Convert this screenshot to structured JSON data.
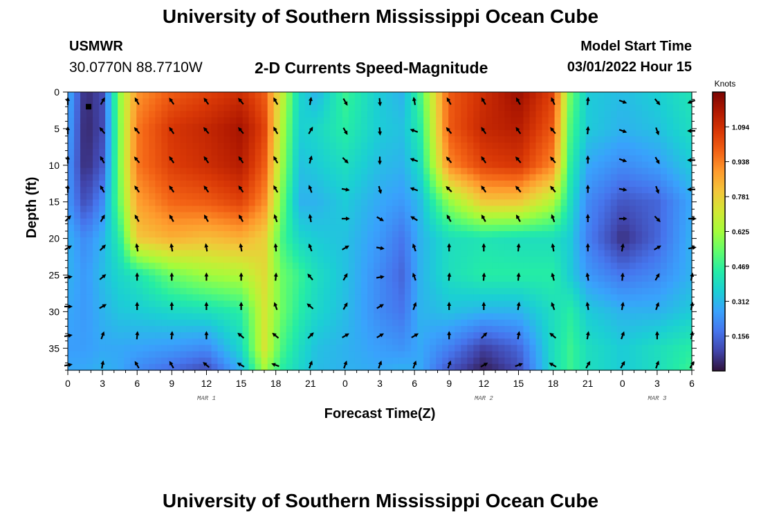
{
  "header": {
    "title": "University of Southern Mississippi Ocean Cube",
    "station_id": "USMWR",
    "coordinates": "30.0770N  88.7710W",
    "subtitle": "2-D Currents Speed-Magnitude",
    "model_start_label": "Model Start Time",
    "model_start_value": "03/01/2022 Hour 15"
  },
  "footer": {
    "title": "University of Southern Mississippi Ocean Cube"
  },
  "chart_data": {
    "type": "heatmap",
    "title": "2-D Currents Speed-Magnitude",
    "xlabel": "Forecast Time(Z)",
    "ylabel": "Depth (ft)",
    "x_start_hour": 0,
    "x_end_hour": 54,
    "x_ticks": [
      {
        "hour": 0,
        "label": "0"
      },
      {
        "hour": 3,
        "label": "3"
      },
      {
        "hour": 6,
        "label": "6"
      },
      {
        "hour": 9,
        "label": "9"
      },
      {
        "hour": 12,
        "label": "12"
      },
      {
        "hour": 15,
        "label": "15"
      },
      {
        "hour": 18,
        "label": "18"
      },
      {
        "hour": 21,
        "label": "21"
      },
      {
        "hour": 24,
        "label": "0"
      },
      {
        "hour": 27,
        "label": "3"
      },
      {
        "hour": 30,
        "label": "6"
      },
      {
        "hour": 33,
        "label": "9"
      },
      {
        "hour": 36,
        "label": "12"
      },
      {
        "hour": 39,
        "label": "15"
      },
      {
        "hour": 42,
        "label": "18"
      },
      {
        "hour": 45,
        "label": "21"
      },
      {
        "hour": 48,
        "label": "0"
      },
      {
        "hour": 51,
        "label": "3"
      },
      {
        "hour": 54,
        "label": "6"
      }
    ],
    "day_labels": [
      {
        "hour": 12,
        "label": "MAR 1"
      },
      {
        "hour": 36,
        "label": "MAR 2"
      },
      {
        "hour": 51,
        "label": "MAR 3"
      }
    ],
    "y_range": [
      0,
      38
    ],
    "y_ticks": [
      0,
      5,
      10,
      15,
      20,
      25,
      30,
      35
    ],
    "colorbar": {
      "unit": "Knots",
      "min": 0,
      "max": 1.25,
      "tick_values": [
        0.156,
        0.312,
        0.469,
        0.625,
        0.781,
        0.938,
        1.094
      ],
      "tick_labels": [
        "0.156",
        "0.312",
        "0.469",
        "0.625",
        "0.781",
        "0.938",
        "1.094"
      ],
      "colors": [
        "#30123b",
        "#4145ab",
        "#4675ed",
        "#39a2fc",
        "#1bcfd4",
        "#24eca6",
        "#61fc6c",
        "#a4fc3b",
        "#d1e834",
        "#f3c63a",
        "#fe9b2d",
        "#f36315",
        "#d93806",
        "#b11901",
        "#7a0402"
      ]
    },
    "speed_grid_hours": [
      0,
      1.5,
      3,
      4.5,
      6,
      9,
      12,
      15,
      17,
      18.5,
      20,
      21.5,
      24,
      27,
      29,
      30.5,
      33,
      36,
      39,
      42,
      43.5,
      45,
      48,
      51,
      54
    ],
    "speed_grid_depths": [
      0,
      5,
      10,
      15,
      20,
      25,
      30,
      35,
      38
    ],
    "speed_grid": [
      [
        0.3,
        0.04,
        0.1,
        0.6,
        0.9,
        1.0,
        1.05,
        1.1,
        1.0,
        0.7,
        0.38,
        0.3,
        0.48,
        0.35,
        0.3,
        0.5,
        1.0,
        1.1,
        1.2,
        1.05,
        0.55,
        0.35,
        0.32,
        0.36,
        0.42
      ],
      [
        0.28,
        0.03,
        0.1,
        0.58,
        0.95,
        1.08,
        1.12,
        1.18,
        1.05,
        0.65,
        0.36,
        0.38,
        0.45,
        0.35,
        0.33,
        0.45,
        1.0,
        1.12,
        1.15,
        1.0,
        0.5,
        0.35,
        0.3,
        0.33,
        0.4
      ],
      [
        0.25,
        0.04,
        0.13,
        0.58,
        0.95,
        1.06,
        1.1,
        1.15,
        1.0,
        0.62,
        0.33,
        0.35,
        0.4,
        0.32,
        0.3,
        0.4,
        0.92,
        1.05,
        1.08,
        0.92,
        0.45,
        0.28,
        0.22,
        0.26,
        0.35
      ],
      [
        0.25,
        0.1,
        0.22,
        0.55,
        0.88,
        0.98,
        1.0,
        1.05,
        0.92,
        0.56,
        0.3,
        0.3,
        0.35,
        0.28,
        0.25,
        0.32,
        0.6,
        0.8,
        0.8,
        0.65,
        0.4,
        0.22,
        0.12,
        0.15,
        0.28
      ],
      [
        0.3,
        0.22,
        0.3,
        0.45,
        0.8,
        0.85,
        0.82,
        0.85,
        0.78,
        0.5,
        0.38,
        0.35,
        0.33,
        0.25,
        0.18,
        0.3,
        0.4,
        0.42,
        0.4,
        0.4,
        0.35,
        0.2,
        0.05,
        0.15,
        0.3
      ],
      [
        0.3,
        0.25,
        0.32,
        0.38,
        0.42,
        0.55,
        0.62,
        0.65,
        0.75,
        0.55,
        0.48,
        0.4,
        0.33,
        0.22,
        0.15,
        0.3,
        0.4,
        0.45,
        0.45,
        0.45,
        0.35,
        0.25,
        0.18,
        0.22,
        0.3
      ],
      [
        0.28,
        0.25,
        0.3,
        0.34,
        0.35,
        0.38,
        0.4,
        0.45,
        0.72,
        0.55,
        0.45,
        0.38,
        0.32,
        0.22,
        0.18,
        0.3,
        0.33,
        0.3,
        0.3,
        0.4,
        0.45,
        0.35,
        0.3,
        0.3,
        0.35
      ],
      [
        0.26,
        0.26,
        0.28,
        0.28,
        0.27,
        0.25,
        0.22,
        0.38,
        0.72,
        0.5,
        0.4,
        0.33,
        0.3,
        0.26,
        0.24,
        0.28,
        0.2,
        0.08,
        0.15,
        0.4,
        0.48,
        0.4,
        0.35,
        0.4,
        0.45
      ],
      [
        0.28,
        0.28,
        0.3,
        0.28,
        0.22,
        0.16,
        0.1,
        0.3,
        0.62,
        0.45,
        0.38,
        0.32,
        0.3,
        0.28,
        0.3,
        0.28,
        0.12,
        0.02,
        0.1,
        0.4,
        0.48,
        0.4,
        0.35,
        0.4,
        0.48
      ]
    ],
    "vector_hours": [
      0,
      3,
      6,
      9,
      12,
      15,
      18,
      21,
      24,
      27,
      30,
      33,
      36,
      39,
      42,
      45,
      48,
      51,
      54
    ],
    "vector_depths": [
      0,
      4,
      8,
      12,
      16,
      20,
      24,
      28,
      32,
      36
    ],
    "vector_directions_deg": [
      [
        0,
        30,
        330,
        325,
        325,
        320,
        330,
        10,
        150,
        175,
        350,
        330,
        330,
        330,
        335,
        5,
        110,
        140,
        250
      ],
      [
        0,
        320,
        320,
        325,
        320,
        320,
        330,
        30,
        150,
        175,
        290,
        320,
        325,
        325,
        320,
        5,
        110,
        160,
        270
      ],
      [
        0,
        330,
        320,
        325,
        325,
        325,
        330,
        15,
        135,
        180,
        290,
        320,
        325,
        320,
        320,
        0,
        110,
        150,
        270
      ],
      [
        0,
        330,
        325,
        325,
        325,
        325,
        330,
        340,
        100,
        165,
        290,
        315,
        325,
        320,
        320,
        0,
        100,
        160,
        270
      ],
      [
        45,
        30,
        330,
        330,
        330,
        330,
        340,
        350,
        90,
        120,
        300,
        330,
        330,
        330,
        340,
        0,
        90,
        135,
        90
      ],
      [
        60,
        45,
        350,
        350,
        350,
        350,
        355,
        340,
        60,
        100,
        340,
        0,
        0,
        5,
        350,
        0,
        10,
        60,
        80
      ],
      [
        80,
        50,
        0,
        0,
        0,
        0,
        5,
        320,
        30,
        80,
        340,
        5,
        5,
        5,
        345,
        350,
        5,
        30,
        10
      ],
      [
        90,
        60,
        0,
        0,
        0,
        0,
        340,
        310,
        30,
        60,
        20,
        0,
        0,
        10,
        340,
        350,
        10,
        20,
        10
      ],
      [
        80,
        20,
        5,
        5,
        0,
        310,
        310,
        45,
        60,
        60,
        60,
        0,
        45,
        10,
        310,
        10,
        20,
        0,
        10
      ],
      [
        80,
        10,
        330,
        330,
        310,
        300,
        290,
        20,
        20,
        20,
        20,
        20,
        60,
        70,
        300,
        30,
        30,
        20,
        30
      ]
    ]
  }
}
